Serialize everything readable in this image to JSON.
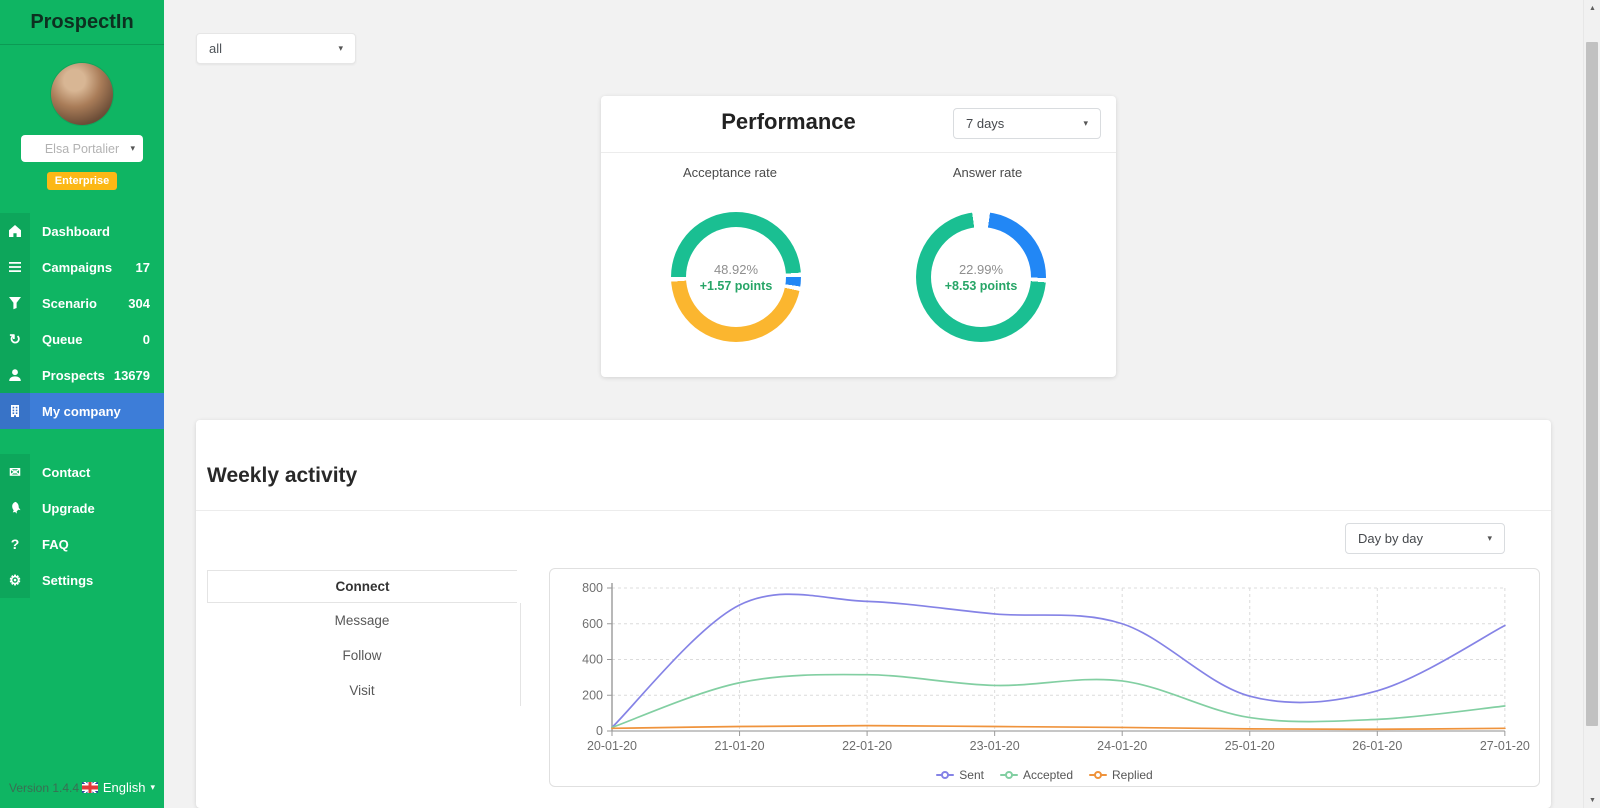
{
  "sidebar": {
    "brand": "ProspectIn",
    "user": {
      "name": "Elsa Portalier",
      "plan": "Enterprise"
    },
    "nav_primary": [
      {
        "label": "Dashboard",
        "icon": "home",
        "count": "",
        "active": false
      },
      {
        "label": "Campaigns",
        "icon": "list",
        "count": "17",
        "active": false
      },
      {
        "label": "Scenario",
        "icon": "funnel",
        "count": "304",
        "active": false
      },
      {
        "label": "Queue",
        "icon": "refresh",
        "count": "0",
        "active": false
      },
      {
        "label": "Prospects",
        "icon": "user",
        "count": "13679",
        "active": false
      },
      {
        "label": "My company",
        "icon": "building",
        "count": "",
        "active": true
      }
    ],
    "nav_secondary": [
      {
        "label": "Contact",
        "icon": "envelope",
        "count": "",
        "active": false
      },
      {
        "label": "Upgrade",
        "icon": "rocket",
        "count": "",
        "active": false
      },
      {
        "label": "FAQ",
        "icon": "question",
        "count": "",
        "active": false
      },
      {
        "label": "Settings",
        "icon": "gear",
        "count": "",
        "active": false
      }
    ],
    "footer": {
      "version": "Version 1.4.4",
      "language": "English"
    }
  },
  "topbar": {
    "filter_value": "all"
  },
  "performance": {
    "title": "Performance",
    "range_value": "7 days"
  },
  "weekly": {
    "title": "Weekly activity",
    "granularity_value": "Day by day",
    "tabs": [
      {
        "label": "Connect",
        "active": true
      },
      {
        "label": "Message",
        "active": false
      },
      {
        "label": "Follow",
        "active": false
      },
      {
        "label": "Visit",
        "active": false
      }
    ]
  },
  "chart_data": [
    {
      "type": "donut",
      "label": "Acceptance rate",
      "center_value": "48.92%",
      "center_delta": "+1.57 points",
      "start_deg": 270,
      "segments": [
        {
          "pct": 48.92,
          "color": "#1abf92"
        },
        {
          "pct": 2.3,
          "color": "#2287f5"
        },
        {
          "pct": 45.4,
          "color": "#fbb62f"
        }
      ]
    },
    {
      "type": "donut",
      "label": "Answer rate",
      "center_value": "22.99%",
      "center_delta": "+8.53 points",
      "start_deg": 8,
      "segments": [
        {
          "pct": 22.99,
          "color": "#2287f5"
        },
        {
          "pct": 71.5,
          "color": "#1abf92"
        }
      ]
    },
    {
      "type": "line",
      "x": [
        "20-01-20",
        "21-01-20",
        "22-01-20",
        "23-01-20",
        "24-01-20",
        "25-01-20",
        "26-01-20",
        "27-01-20"
      ],
      "series": [
        {
          "name": "Sent",
          "color": "#8583e6",
          "values": [
            20,
            705,
            725,
            655,
            600,
            195,
            225,
            590
          ]
        },
        {
          "name": "Accepted",
          "color": "#82cfa2",
          "values": [
            20,
            270,
            315,
            255,
            280,
            75,
            65,
            140
          ]
        },
        {
          "name": "Replied",
          "color": "#ef933c",
          "values": [
            15,
            25,
            30,
            25,
            20,
            12,
            10,
            15
          ]
        }
      ],
      "ylim": [
        0,
        800
      ],
      "yticks": [
        0,
        200,
        400,
        600,
        800
      ],
      "grid": true,
      "legend_position": "bottom"
    }
  ],
  "colors": {
    "sidebar_green": "#0fb563",
    "active_blue": "#3d7dd8",
    "badge_yellow": "#fcb815",
    "donut_green": "#1abf92",
    "donut_yellow": "#fbb62f",
    "donut_blue": "#2287f5",
    "delta_green": "#27a567"
  },
  "scrollbar": {
    "up_icon": "▲",
    "down_icon": "▼"
  },
  "carets": {
    "down": "▾"
  }
}
